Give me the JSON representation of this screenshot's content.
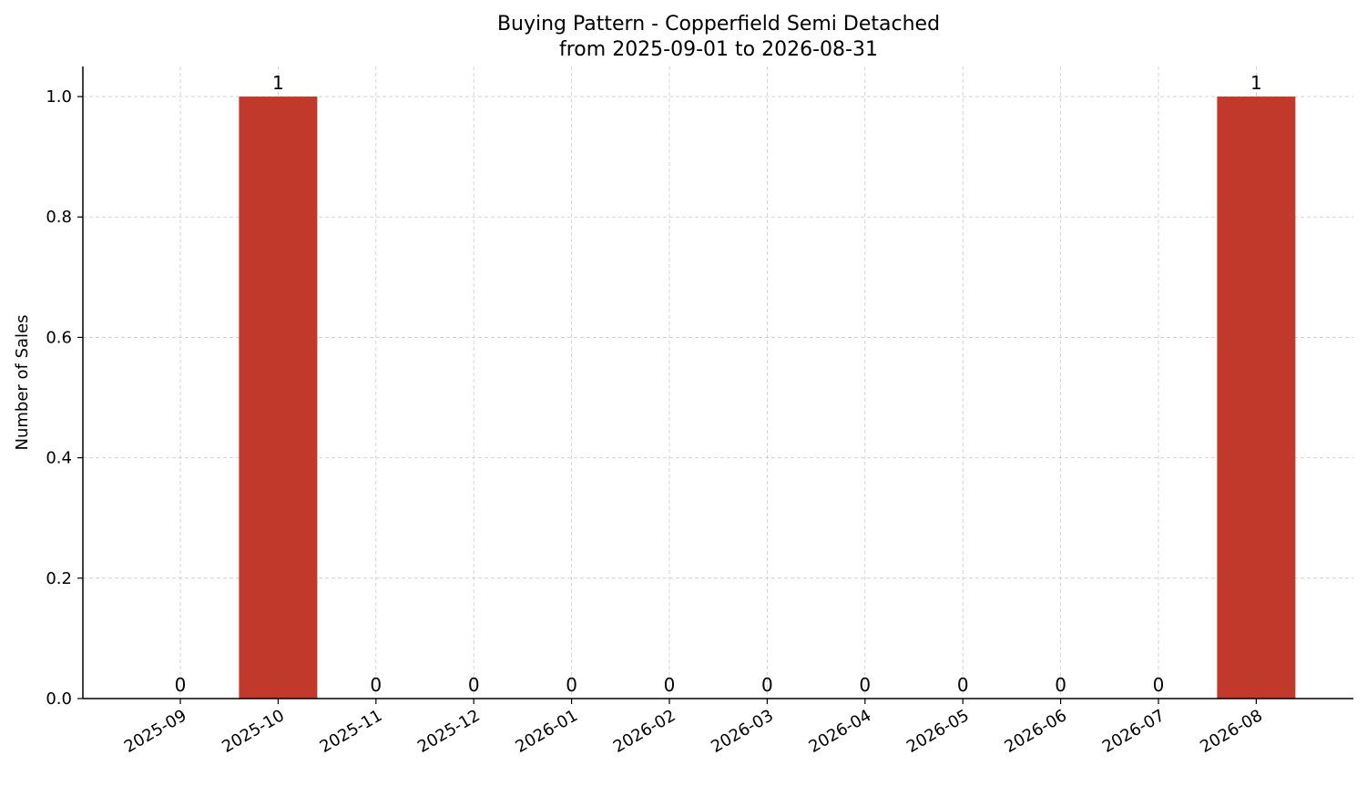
{
  "chart_data": {
    "type": "bar",
    "title": "Buying Pattern - Copperfield Semi Detached",
    "subtitle": "from 2025-09-01 to 2026-08-31",
    "xlabel": "",
    "ylabel": "Number of Sales",
    "categories": [
      "2025-09",
      "2025-10",
      "2025-11",
      "2025-12",
      "2026-01",
      "2026-02",
      "2026-03",
      "2026-04",
      "2026-05",
      "2026-06",
      "2026-07",
      "2026-08"
    ],
    "values": [
      0,
      1,
      0,
      0,
      0,
      0,
      0,
      0,
      0,
      0,
      0,
      1
    ],
    "data_labels": [
      "0",
      "1",
      "0",
      "0",
      "0",
      "0",
      "0",
      "0",
      "0",
      "0",
      "0",
      "1"
    ],
    "ylim": [
      0,
      1.05
    ],
    "yticks": [
      "0.0",
      "0.2",
      "0.4",
      "0.6",
      "0.8",
      "1.0"
    ],
    "grid": true,
    "bar_color": "#c0392b"
  }
}
